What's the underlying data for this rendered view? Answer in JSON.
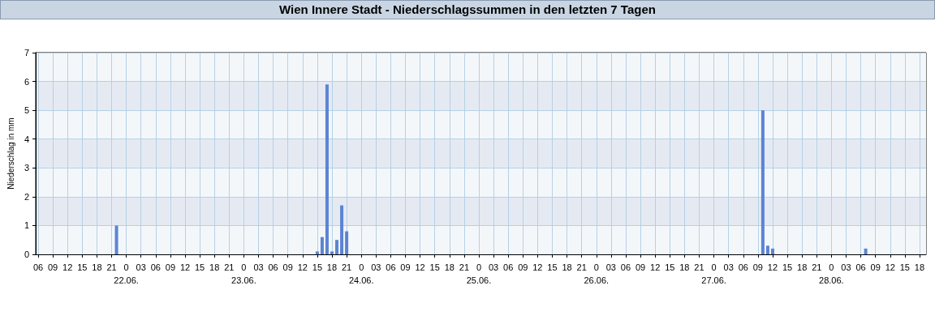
{
  "chart_data": {
    "type": "bar",
    "title": "Wien Innere Stadt - Niederschlagssummen in den letzten 7 Tagen",
    "ylabel": "Niederschlag in mm",
    "x": [
      "--06-21T22:00",
      "--06-23T15:00",
      "--06-23T16:00",
      "--06-23T17:00",
      "--06-23T18:00",
      "--06-23T19:00",
      "--06-23T20:00",
      "--06-23T21:00",
      "--06-27T10:00",
      "--06-27T11:00",
      "--06-27T12:00",
      "--06-28T07:00"
    ],
    "values": [
      1.0,
      0.1,
      0.6,
      5.9,
      0.1,
      0.5,
      1.7,
      0.8,
      5.0,
      0.3,
      0.2,
      0.2
    ],
    "color": "#5b84d4",
    "xlim": [
      "--06-21T05:30",
      "--06-28T19:20"
    ],
    "xticks": [
      {
        "value": "--06-21T06:00",
        "label": "06"
      },
      {
        "value": "--06-21T09:00",
        "label": "09"
      },
      {
        "value": "--06-21T12:00",
        "label": "12"
      },
      {
        "value": "--06-21T15:00",
        "label": "15"
      },
      {
        "value": "--06-21T18:00",
        "label": "18"
      },
      {
        "value": "--06-21T21:00",
        "label": "21"
      },
      {
        "value": "--06-22T00:00",
        "label": "0\n22.06."
      },
      {
        "value": "--06-22T03:00",
        "label": "03"
      },
      {
        "value": "--06-22T06:00",
        "label": "06"
      },
      {
        "value": "--06-22T09:00",
        "label": "09"
      },
      {
        "value": "--06-22T12:00",
        "label": "12"
      },
      {
        "value": "--06-22T15:00",
        "label": "15"
      },
      {
        "value": "--06-22T18:00",
        "label": "18"
      },
      {
        "value": "--06-22T21:00",
        "label": "21"
      },
      {
        "value": "--06-23T00:00",
        "label": "0\n23.06."
      },
      {
        "value": "--06-23T03:00",
        "label": "03"
      },
      {
        "value": "--06-23T06:00",
        "label": "06"
      },
      {
        "value": "--06-23T09:00",
        "label": "09"
      },
      {
        "value": "--06-23T12:00",
        "label": "12"
      },
      {
        "value": "--06-23T15:00",
        "label": "15"
      },
      {
        "value": "--06-23T18:00",
        "label": "18"
      },
      {
        "value": "--06-23T21:00",
        "label": "21"
      },
      {
        "value": "--06-24T00:00",
        "label": "0\n24.06."
      },
      {
        "value": "--06-24T03:00",
        "label": "03"
      },
      {
        "value": "--06-24T06:00",
        "label": "06"
      },
      {
        "value": "--06-24T09:00",
        "label": "09"
      },
      {
        "value": "--06-24T12:00",
        "label": "12"
      },
      {
        "value": "--06-24T15:00",
        "label": "15"
      },
      {
        "value": "--06-24T18:00",
        "label": "18"
      },
      {
        "value": "--06-24T21:00",
        "label": "21"
      },
      {
        "value": "--06-25T00:00",
        "label": "0\n25.06."
      },
      {
        "value": "--06-25T03:00",
        "label": "03"
      },
      {
        "value": "--06-25T06:00",
        "label": "06"
      },
      {
        "value": "--06-25T09:00",
        "label": "09"
      },
      {
        "value": "--06-25T12:00",
        "label": "12"
      },
      {
        "value": "--06-25T15:00",
        "label": "15"
      },
      {
        "value": "--06-25T18:00",
        "label": "18"
      },
      {
        "value": "--06-25T21:00",
        "label": "21"
      },
      {
        "value": "--06-26T00:00",
        "label": "0\n26.06."
      },
      {
        "value": "--06-26T03:00",
        "label": "03"
      },
      {
        "value": "--06-26T06:00",
        "label": "06"
      },
      {
        "value": "--06-26T09:00",
        "label": "09"
      },
      {
        "value": "--06-26T12:00",
        "label": "12"
      },
      {
        "value": "--06-26T15:00",
        "label": "15"
      },
      {
        "value": "--06-26T18:00",
        "label": "18"
      },
      {
        "value": "--06-26T21:00",
        "label": "21"
      },
      {
        "value": "--06-27T00:00",
        "label": "0\n27.06."
      },
      {
        "value": "--06-27T03:00",
        "label": "03"
      },
      {
        "value": "--06-27T06:00",
        "label": "06"
      },
      {
        "value": "--06-27T09:00",
        "label": "09"
      },
      {
        "value": "--06-27T12:00",
        "label": "12"
      },
      {
        "value": "--06-27T15:00",
        "label": "15"
      },
      {
        "value": "--06-27T18:00",
        "label": "18"
      },
      {
        "value": "--06-27T21:00",
        "label": "21"
      },
      {
        "value": "--06-28T00:00",
        "label": "0\n28.06."
      },
      {
        "value": "--06-28T03:00",
        "label": "03"
      },
      {
        "value": "--06-28T06:00",
        "label": "06"
      },
      {
        "value": "--06-28T09:00",
        "label": "09"
      },
      {
        "value": "--06-28T12:00",
        "label": "12"
      },
      {
        "value": "--06-28T15:00",
        "label": "15"
      },
      {
        "value": "--06-28T18:00",
        "label": "18"
      }
    ],
    "ylim": [
      0,
      7
    ],
    "yticks": [
      0,
      1,
      2,
      3,
      4,
      5,
      6,
      7
    ],
    "grid": true
  }
}
